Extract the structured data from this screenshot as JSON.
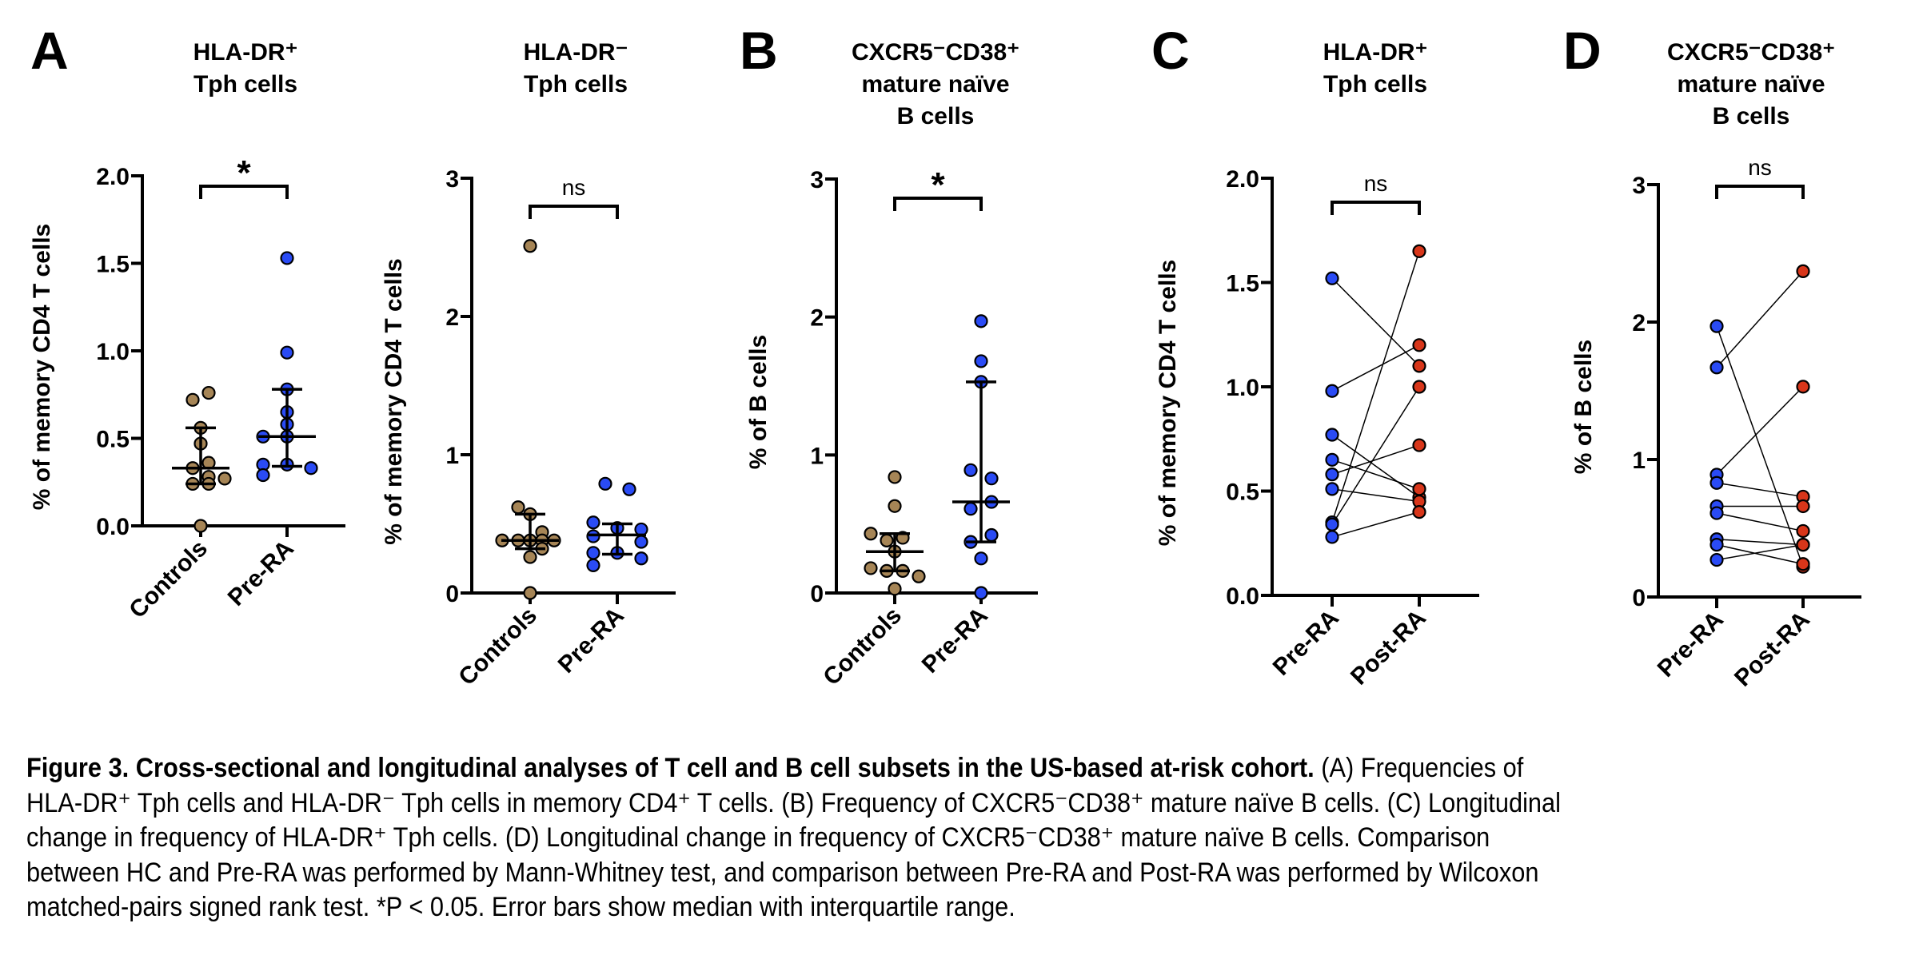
{
  "figure_number": "Figure 3.",
  "caption": {
    "bold_title": "Figure 3. Cross-sectional and longitudinal analyses of T cell and B cell subsets in the US-based at-risk cohort.",
    "body_lines": [
      " (A) Frequencies of",
      "HLA-DR⁺ Tph cells and HLA-DR⁻ Tph cells in memory CD4⁺ T cells. (B) Frequency of CXCR5⁻CD38⁺ mature naïve B cells. (C) Longitudinal",
      "change in frequency of HLA-DR⁺ Tph cells. (D) Longitudinal change in frequency of CXCR5⁻CD38⁺ mature naïve B cells. Comparison",
      "between HC and Pre-RA was performed by Mann-Whitney test, and comparison between Pre-RA and Post-RA was performed by Wilcoxon",
      "matched-pairs signed rank test. *P < 0.05. Error bars show median with interquartile range."
    ]
  },
  "colors": {
    "controls": "#a68556",
    "pre_ra": "#2a4bf5",
    "post_ra": "#d8361a",
    "axis": "#000000"
  },
  "chart_data": [
    {
      "id": "A1",
      "panel_letter": "A",
      "type": "scatter",
      "title_lines": [
        "HLA-DR⁺",
        "Tph cells"
      ],
      "ylabel": "% of memory CD4 T cells",
      "ylim": [
        0,
        2.0
      ],
      "yticks": [
        "0.0",
        "0.5",
        "1.0",
        "1.5",
        "2.0"
      ],
      "ytick_values": [
        0,
        0.5,
        1.0,
        1.5,
        2.0
      ],
      "categories": [
        "Controls",
        "Pre-RA"
      ],
      "significance": "*",
      "series": [
        {
          "name": "Controls",
          "color_key": "controls",
          "values": [
            0.76,
            0.72,
            0.56,
            0.47,
            0.36,
            0.33,
            0.28,
            0.27,
            0.24,
            0.24,
            0.0
          ],
          "median": 0.33,
          "q1": 0.24,
          "q3": 0.56
        },
        {
          "name": "Pre-RA",
          "color_key": "pre_ra",
          "values": [
            1.53,
            0.99,
            0.78,
            0.65,
            0.58,
            0.51,
            0.51,
            0.35,
            0.35,
            0.33,
            0.29
          ],
          "median": 0.51,
          "q1": 0.34,
          "q3": 0.78
        }
      ]
    },
    {
      "id": "A2",
      "panel_letter": "",
      "type": "scatter",
      "title_lines": [
        "HLA-DR⁻",
        "Tph cells"
      ],
      "ylabel": "% of memory CD4 T cells",
      "ylim": [
        0,
        3
      ],
      "yticks": [
        "0",
        "1",
        "2",
        "3"
      ],
      "ytick_values": [
        0,
        1,
        2,
        3
      ],
      "categories": [
        "Controls",
        "Pre-RA"
      ],
      "significance": "ns",
      "series": [
        {
          "name": "Controls",
          "color_key": "controls",
          "values": [
            2.51,
            0.62,
            0.57,
            0.44,
            0.38,
            0.38,
            0.38,
            0.38,
            0.38,
            0.32,
            0.26,
            0.0
          ],
          "median": 0.38,
          "q1": 0.32,
          "q3": 0.57
        },
        {
          "name": "Pre-RA",
          "color_key": "pre_ra",
          "values": [
            0.79,
            0.75,
            0.51,
            0.47,
            0.46,
            0.41,
            0.37,
            0.29,
            0.29,
            0.25,
            0.2
          ],
          "median": 0.42,
          "q1": 0.28,
          "q3": 0.5
        }
      ]
    },
    {
      "id": "B",
      "panel_letter": "B",
      "type": "scatter",
      "title_lines": [
        "CXCR5⁻CD38⁺",
        "mature naïve",
        "B cells"
      ],
      "ylabel": "% of B cells",
      "ylim": [
        0,
        3
      ],
      "yticks": [
        "0",
        "1",
        "2",
        "3"
      ],
      "ytick_values": [
        0,
        1,
        2,
        3
      ],
      "categories": [
        "Controls",
        "Pre-RA"
      ],
      "significance": "*",
      "series": [
        {
          "name": "Controls",
          "color_key": "controls",
          "values": [
            0.84,
            0.63,
            0.43,
            0.4,
            0.38,
            0.3,
            0.18,
            0.16,
            0.16,
            0.12,
            0.03
          ],
          "median": 0.3,
          "q1": 0.16,
          "q3": 0.43
        },
        {
          "name": "Pre-RA",
          "color_key": "pre_ra",
          "values": [
            1.97,
            1.68,
            1.53,
            0.89,
            0.83,
            0.66,
            0.61,
            0.42,
            0.37,
            0.25,
            0.0
          ],
          "median": 0.66,
          "q1": 0.37,
          "q3": 1.53
        }
      ]
    },
    {
      "id": "C",
      "panel_letter": "C",
      "type": "line",
      "title_lines": [
        "HLA-DR⁺",
        "Tph cells"
      ],
      "ylabel": "% of memory CD4 T cells",
      "ylim": [
        0,
        2.0
      ],
      "yticks": [
        "0.0",
        "0.5",
        "1.0",
        "1.5",
        "2.0"
      ],
      "ytick_values": [
        0,
        0.5,
        1.0,
        1.5,
        2.0
      ],
      "categories": [
        "Pre-RA",
        "Post-RA"
      ],
      "significance": "ns",
      "pairs": [
        {
          "pre": 1.52,
          "post": 1.1
        },
        {
          "pre": 0.98,
          "post": 1.2
        },
        {
          "pre": 0.77,
          "post": 0.47
        },
        {
          "pre": 0.65,
          "post": 0.51
        },
        {
          "pre": 0.58,
          "post": 0.72
        },
        {
          "pre": 0.51,
          "post": 0.45
        },
        {
          "pre": 0.35,
          "post": 1.65
        },
        {
          "pre": 0.34,
          "post": 1.0
        },
        {
          "pre": 0.28,
          "post": 0.4
        }
      ]
    },
    {
      "id": "D",
      "panel_letter": "D",
      "type": "line",
      "title_lines": [
        "CXCR5⁻CD38⁺",
        "mature naïve",
        "B cells"
      ],
      "ylabel": "% of B cells",
      "ylim": [
        0,
        3
      ],
      "yticks": [
        "0",
        "1",
        "2",
        "3"
      ],
      "ytick_values": [
        0,
        1,
        2,
        3
      ],
      "categories": [
        "Pre-RA",
        "Post-RA"
      ],
      "significance": "ns",
      "pairs": [
        {
          "pre": 1.97,
          "post": 0.22
        },
        {
          "pre": 1.67,
          "post": 2.37
        },
        {
          "pre": 0.89,
          "post": 1.53
        },
        {
          "pre": 0.83,
          "post": 0.73
        },
        {
          "pre": 0.66,
          "post": 0.66
        },
        {
          "pre": 0.61,
          "post": 0.48
        },
        {
          "pre": 0.42,
          "post": 0.38
        },
        {
          "pre": 0.38,
          "post": 0.24
        },
        {
          "pre": 0.27,
          "post": 0.38
        }
      ]
    }
  ]
}
